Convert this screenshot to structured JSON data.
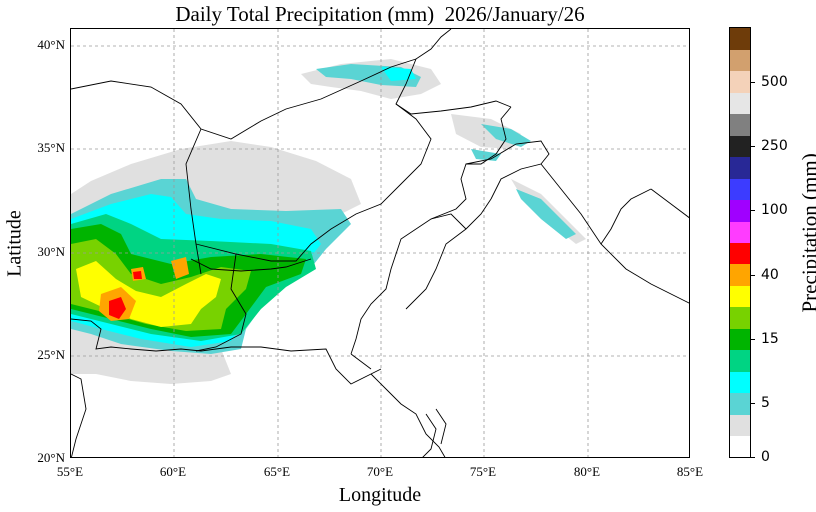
{
  "title": "Daily Total Precipitation (mm)  2026/January/26",
  "xlabel": "Longitude",
  "ylabel": "Latitude",
  "x_ticks": [
    "55°E",
    "60°E",
    "65°E",
    "70°E",
    "75°E",
    "80°E",
    "85°E"
  ],
  "y_ticks": [
    "20°N",
    "25°N",
    "30°N",
    "35°N",
    "40°N"
  ],
  "colorbar": {
    "title": "Precipitation (mm)",
    "colors": [
      "#ffffff",
      "#e0e0e0",
      "#5ad4d4",
      "#00ffff",
      "#00d483",
      "#00b400",
      "#78d200",
      "#ffff00",
      "#ffa500",
      "#ff0000",
      "#ff3cff",
      "#a000ff",
      "#3c3cff",
      "#282896",
      "#222222",
      "#808080",
      "#e6e6e6",
      "#f4d2b9",
      "#d2a06e",
      "#6e3c0a"
    ],
    "labels": [
      "0",
      "5",
      "15",
      "40",
      "100",
      "250",
      "500"
    ]
  },
  "chart_data": {
    "type": "heatmap",
    "title": "Daily Total Precipitation (mm)  2026/January/26",
    "xlabel": "Longitude",
    "ylabel": "Latitude",
    "xlim": [
      55,
      85
    ],
    "ylim": [
      20,
      41
    ],
    "grid": true,
    "colorbar_ticks": [
      0,
      5,
      15,
      40,
      100,
      250,
      500
    ]
  }
}
